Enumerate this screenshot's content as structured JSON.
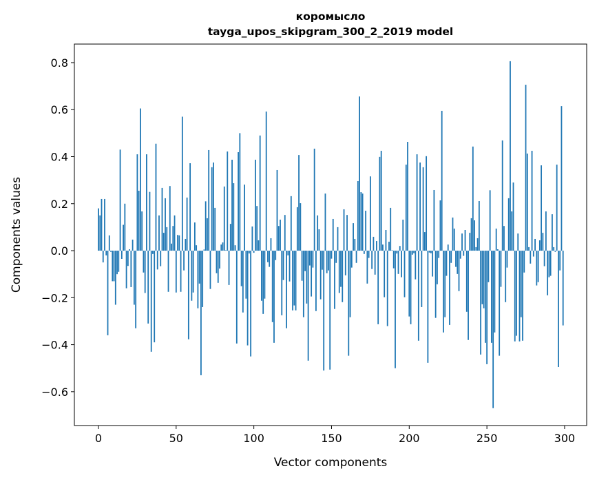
{
  "chart_data": {
    "type": "bar",
    "title": "коромысло",
    "subtitle": "tayga_upos_skipgram_300_2_2019 model",
    "xlabel": "Vector components",
    "ylabel": "Components values",
    "xlim": [
      -15.5,
      314.2
    ],
    "ylim": [
      -0.744,
      0.879
    ],
    "xticks": [
      0,
      50,
      100,
      150,
      200,
      250,
      300
    ],
    "xtick_labels": [
      "0",
      "50",
      "100",
      "150",
      "200",
      "250",
      "300"
    ],
    "yticks": [
      -0.6,
      -0.4,
      -0.2,
      0.0,
      0.2,
      0.4,
      0.6,
      0.8
    ],
    "ytick_labels": [
      "−0.6",
      "−0.4",
      "−0.2",
      "0.0",
      "0.2",
      "0.4",
      "0.6",
      "0.8"
    ],
    "grid": false,
    "bar_color": "#1f77b4",
    "values": [
      0.18,
      0.15,
      0.22,
      -0.05,
      0.22,
      -0.02,
      -0.36,
      0.065,
      -0.005,
      -0.13,
      -0.13,
      -0.23,
      -0.1,
      -0.09,
      0.43,
      -0.035,
      0.11,
      0.2,
      -0.16,
      -0.065,
      0.006,
      -0.155,
      0.047,
      -0.23,
      -0.33,
      0.41,
      0.255,
      0.605,
      0.167,
      -0.093,
      -0.18,
      0.41,
      -0.31,
      0.25,
      -0.43,
      -0.014,
      -0.39,
      0.455,
      -0.08,
      0.15,
      -0.066,
      0.267,
      0.076,
      0.223,
      0.1,
      -0.175,
      0.275,
      0.03,
      0.105,
      0.15,
      -0.178,
      0.067,
      0.065,
      -0.175,
      0.57,
      -0.084,
      0.05,
      0.226,
      -0.377,
      0.372,
      -0.213,
      -0.178,
      0.12,
      0.023,
      -0.245,
      -0.14,
      -0.53,
      -0.24,
      0.005,
      0.21,
      0.138,
      0.428,
      -0.163,
      0.355,
      0.375,
      0.182,
      -0.096,
      -0.137,
      -0.076,
      0.026,
      0.035,
      0.273,
      0.002,
      0.422,
      -0.146,
      0.114,
      0.387,
      0.287,
      0.023,
      -0.395,
      0.419,
      0.5,
      -0.151,
      -0.263,
      0.281,
      -0.204,
      -0.403,
      -0.012,
      -0.45,
      0.103,
      -0.009,
      0.387,
      0.19,
      0.044,
      0.49,
      -0.213,
      -0.269,
      -0.204,
      0.592,
      -0.049,
      -0.069,
      0.053,
      -0.304,
      -0.392,
      -0.04,
      0.343,
      0.105,
      0.132,
      -0.275,
      -0.125,
      0.152,
      -0.33,
      -0.02,
      -0.131,
      0.232,
      -0.254,
      -0.233,
      -0.254,
      0.185,
      0.407,
      0.202,
      -0.128,
      -0.283,
      -0.087,
      -0.225,
      -0.468,
      -0.063,
      -0.195,
      -0.072,
      0.434,
      -0.257,
      0.15,
      0.091,
      -0.207,
      -0.081,
      -0.51,
      0.243,
      -0.096,
      -0.084,
      -0.506,
      -0.034,
      0.135,
      -0.248,
      -0.052,
      0.1,
      -0.18,
      -0.154,
      -0.219,
      0.176,
      -0.105,
      0.152,
      -0.447,
      -0.283,
      -0.072,
      0.117,
      0.05,
      -0.052,
      0.296,
      0.656,
      0.249,
      0.243,
      -0.014,
      0.17,
      -0.14,
      -0.031,
      0.316,
      -0.078,
      0.059,
      -0.102,
      0.041,
      -0.313,
      0.399,
      0.425,
      0.026,
      -0.198,
      0.088,
      -0.321,
      0.038,
      0.182,
      0.002,
      -0.075,
      -0.5,
      -0.012,
      -0.099,
      0.02,
      -0.113,
      0.132,
      -0.198,
      0.366,
      0.463,
      -0.28,
      -0.313,
      -0.017,
      -0.011,
      -0.122,
      0.41,
      -0.383,
      0.375,
      -0.24,
      0.355,
      0.079,
      0.402,
      -0.477,
      -0.008,
      -0.011,
      -0.11,
      0.258,
      -0.286,
      -0.143,
      -0.031,
      0.214,
      0.595,
      -0.348,
      -0.283,
      -0.107,
      0.026,
      -0.316,
      -0.052,
      0.141,
      0.094,
      -0.069,
      -0.099,
      -0.172,
      -0.034,
      0.073,
      -0.022,
      0.088,
      -0.26,
      -0.38,
      0.076,
      0.138,
      0.443,
      0.129,
      0.015,
      0.053,
      0.211,
      -0.442,
      -0.228,
      -0.245,
      -0.392,
      -0.483,
      -0.134,
      0.257,
      -0.392,
      -0.67,
      -0.348,
      0.094,
      0.006,
      -0.447,
      -0.154,
      0.469,
      0.105,
      -0.219,
      -0.072,
      0.223,
      0.806,
      0.167,
      0.29,
      -0.386,
      -0.362,
      0.073,
      -0.386,
      -0.283,
      -0.383,
      -0.093,
      0.706,
      0.413,
      0.015,
      -0.055,
      0.425,
      -0.025,
      0.05,
      -0.148,
      -0.134,
      0.044,
      0.363,
      0.076,
      -0.066,
      0.167,
      -0.19,
      -0.113,
      -0.107,
      0.155,
      0.015,
      -0.005,
      0.366,
      -0.495,
      -0.084,
      0.615,
      -0.318
    ]
  }
}
